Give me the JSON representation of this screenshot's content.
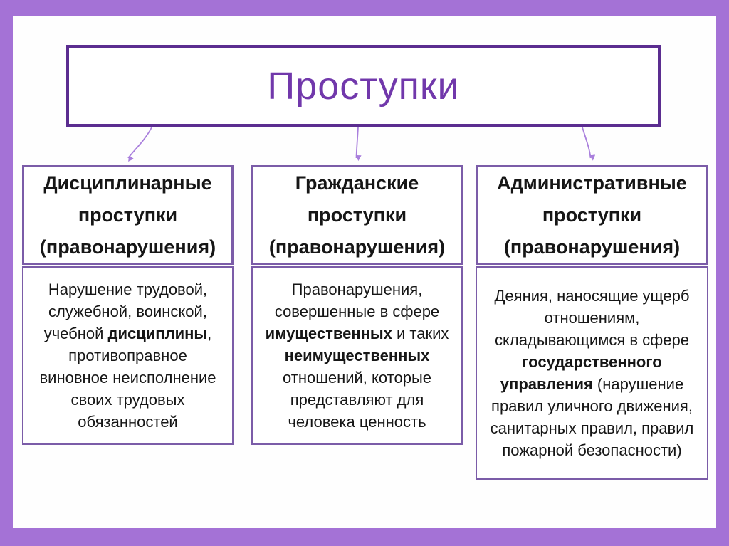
{
  "title": "Проступки",
  "colors": {
    "frame": "#a472d6",
    "title_border": "#5b2d90",
    "title_text": "#7138ab",
    "box_border": "#7b5ca8",
    "arrow": "#aa80dd",
    "text": "#161616"
  },
  "columns": [
    {
      "header": "Дисциплинарные проступки (правонарушения)",
      "body_segments": [
        {
          "text": "Нарушение трудовой, служебной, воинской, учебной ",
          "bold": false
        },
        {
          "text": "дисциплины",
          "bold": true
        },
        {
          "text": ", противоправное виновное неисполнение своих трудовых обязанностей",
          "bold": false
        }
      ]
    },
    {
      "header": "Гражданские проступки (правонарушения)",
      "body_segments": [
        {
          "text": "Правонарушения, совершенные в сфере ",
          "bold": false
        },
        {
          "text": "имущественных",
          "bold": true
        },
        {
          "text": " и таких ",
          "bold": false
        },
        {
          "text": "неимущественных",
          "bold": true
        },
        {
          "text": " отношений, которые представляют для человека ценность",
          "bold": false
        }
      ]
    },
    {
      "header": "Административные проступки (правонарушения)",
      "body_segments": [
        {
          "text": "Деяния, наносящие ущерб отношениям, складывающимся в сфере ",
          "bold": false
        },
        {
          "text": "государственного управления",
          "bold": true
        },
        {
          "text": " (нарушение правил уличного движения, санитарных правил, правил пожарной безопасности)",
          "bold": false
        }
      ]
    }
  ]
}
